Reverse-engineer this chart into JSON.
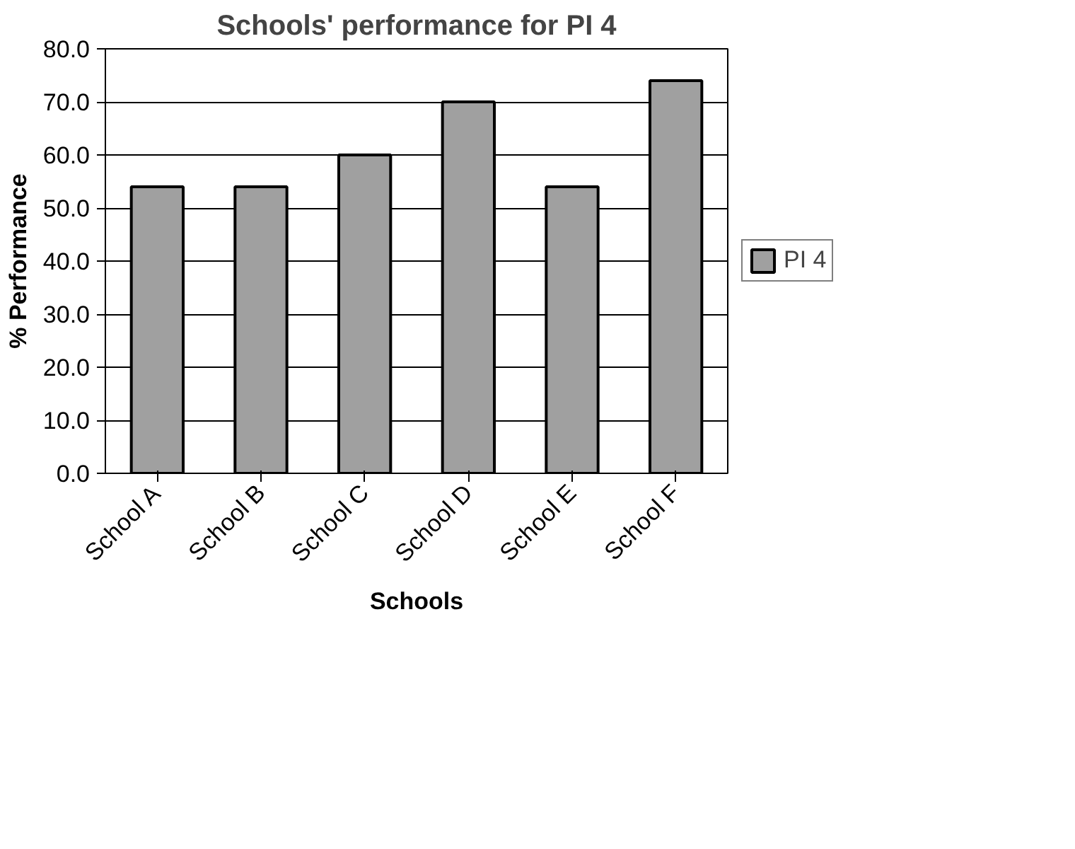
{
  "chart_data": {
    "type": "bar",
    "title": "Schools' performance for PI 4",
    "xlabel": "Schools",
    "ylabel": "% Performance",
    "categories": [
      "School A",
      "School B",
      "School C",
      "School D",
      "School E",
      "School F"
    ],
    "series": [
      {
        "name": "PI 4",
        "color": "#a0a0a0",
        "values": [
          54,
          54,
          60,
          70,
          54,
          74
        ]
      }
    ],
    "ylim": [
      0,
      80
    ],
    "yticks": [
      {
        "value": 0,
        "label": "0.0"
      },
      {
        "value": 10,
        "label": "10.0"
      },
      {
        "value": 20,
        "label": "20.0"
      },
      {
        "value": 30,
        "label": "30.0"
      },
      {
        "value": 40,
        "label": "40.0"
      },
      {
        "value": 50,
        "label": "50.0"
      },
      {
        "value": 60,
        "label": "60.0"
      },
      {
        "value": 70,
        "label": "70.0"
      },
      {
        "value": 80,
        "label": "80.0"
      }
    ],
    "grid": "y",
    "legend": "right"
  }
}
